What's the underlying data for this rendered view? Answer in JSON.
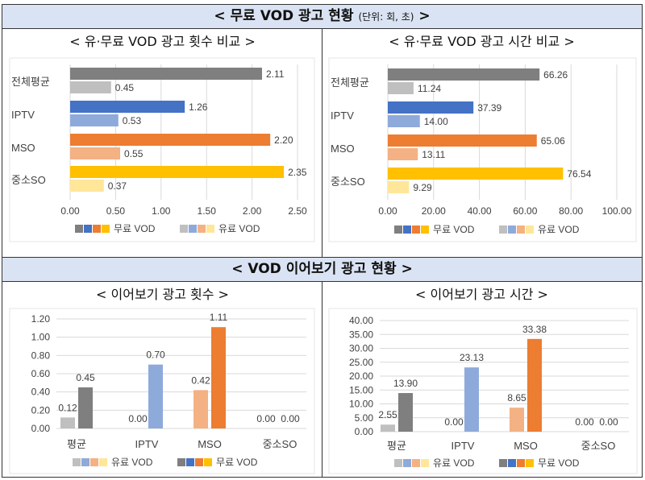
{
  "header1": {
    "title": "< 무료 VOD 광고 현황",
    "unit": "(단위: 회, 초)",
    "close": ">"
  },
  "header2": {
    "title": "< VOD 이어보기 광고 현황 >"
  },
  "chart_data": [
    {
      "type": "bar",
      "orientation": "horizontal",
      "title": "< 유·무료 VOD 광고 횟수 비교 >",
      "categories": [
        "전체평균",
        "IPTV",
        "MSO",
        "중소SO"
      ],
      "series": [
        {
          "name": "무료 VOD",
          "values": [
            2.11,
            1.26,
            2.2,
            2.35
          ],
          "colors": [
            "#7f7f7f",
            "#4472c4",
            "#ed7d31",
            "#ffc000"
          ]
        },
        {
          "name": "유료 VOD",
          "values": [
            0.45,
            0.53,
            0.55,
            0.37
          ],
          "colors": [
            "#bfbfbf",
            "#8eaadb",
            "#f4b183",
            "#ffe699"
          ]
        }
      ],
      "xlim": [
        0,
        2.5
      ],
      "ticks": [
        "0.00",
        "0.50",
        "1.00",
        "1.50",
        "2.00",
        "2.50"
      ],
      "grid": true,
      "legend": "bottom"
    },
    {
      "type": "bar",
      "orientation": "horizontal",
      "title": "< 유·무료 VOD 광고 시간 비교 >",
      "categories": [
        "전체평균",
        "IPTV",
        "MSO",
        "중소SO"
      ],
      "series": [
        {
          "name": "무료 VOD",
          "values": [
            66.26,
            37.39,
            65.06,
            76.54
          ],
          "colors": [
            "#7f7f7f",
            "#4472c4",
            "#ed7d31",
            "#ffc000"
          ]
        },
        {
          "name": "유료 VOD",
          "values": [
            11.24,
            14.0,
            13.11,
            9.29
          ],
          "colors": [
            "#bfbfbf",
            "#8eaadb",
            "#f4b183",
            "#ffe699"
          ]
        }
      ],
      "xlim": [
        0,
        100
      ],
      "ticks": [
        "0.00",
        "20.00",
        "40.00",
        "60.00",
        "80.00",
        "100.00"
      ],
      "grid": true,
      "legend": "bottom"
    },
    {
      "type": "bar",
      "orientation": "vertical",
      "title": "< 이어보기 광고 횟수 >",
      "categories": [
        "평균",
        "IPTV",
        "MSO",
        "중소SO"
      ],
      "series": [
        {
          "name": "유료 VOD",
          "values": [
            0.12,
            0.0,
            0.42,
            0.0
          ],
          "colors": [
            "#bfbfbf",
            "#8eaadb",
            "#f4b183",
            "#ffe699"
          ]
        },
        {
          "name": "무료 VOD",
          "values": [
            0.45,
            0.7,
            1.11,
            0.0
          ],
          "colors": [
            "#7f7f7f",
            "#8eaadb",
            "#ed7d31",
            "#ffc000"
          ]
        }
      ],
      "ylim": [
        0,
        1.2
      ],
      "ticks": [
        "0.00",
        "0.20",
        "0.40",
        "0.60",
        "0.80",
        "1.00",
        "1.20"
      ],
      "grid": true,
      "legend": "bottom",
      "legend_colors": [
        [
          "#bfbfbf",
          "#8eaadb",
          "#f4b183",
          "#ffe699"
        ],
        [
          "#7f7f7f",
          "#4472c4",
          "#ed7d31",
          "#ffc000"
        ]
      ]
    },
    {
      "type": "bar",
      "orientation": "vertical",
      "title": "< 이어보기 광고 시간 >",
      "categories": [
        "평균",
        "IPTV",
        "MSO",
        "중소SO"
      ],
      "series": [
        {
          "name": "유료 VOD",
          "values": [
            2.55,
            0.0,
            8.65,
            0.0
          ],
          "colors": [
            "#bfbfbf",
            "#8eaadb",
            "#f4b183",
            "#ffe699"
          ]
        },
        {
          "name": "무료 VOD",
          "values": [
            13.9,
            23.13,
            33.38,
            0.0
          ],
          "colors": [
            "#7f7f7f",
            "#8eaadb",
            "#ed7d31",
            "#ffc000"
          ]
        }
      ],
      "ylim": [
        0,
        40
      ],
      "ticks": [
        "0.00",
        "5.00",
        "10.00",
        "15.00",
        "20.00",
        "25.00",
        "30.00",
        "35.00",
        "40.00"
      ],
      "grid": true,
      "legend": "bottom",
      "legend_colors": [
        [
          "#bfbfbf",
          "#8eaadb",
          "#f4b183",
          "#ffe699"
        ],
        [
          "#7f7f7f",
          "#4472c4",
          "#ed7d31",
          "#ffc000"
        ]
      ]
    }
  ]
}
